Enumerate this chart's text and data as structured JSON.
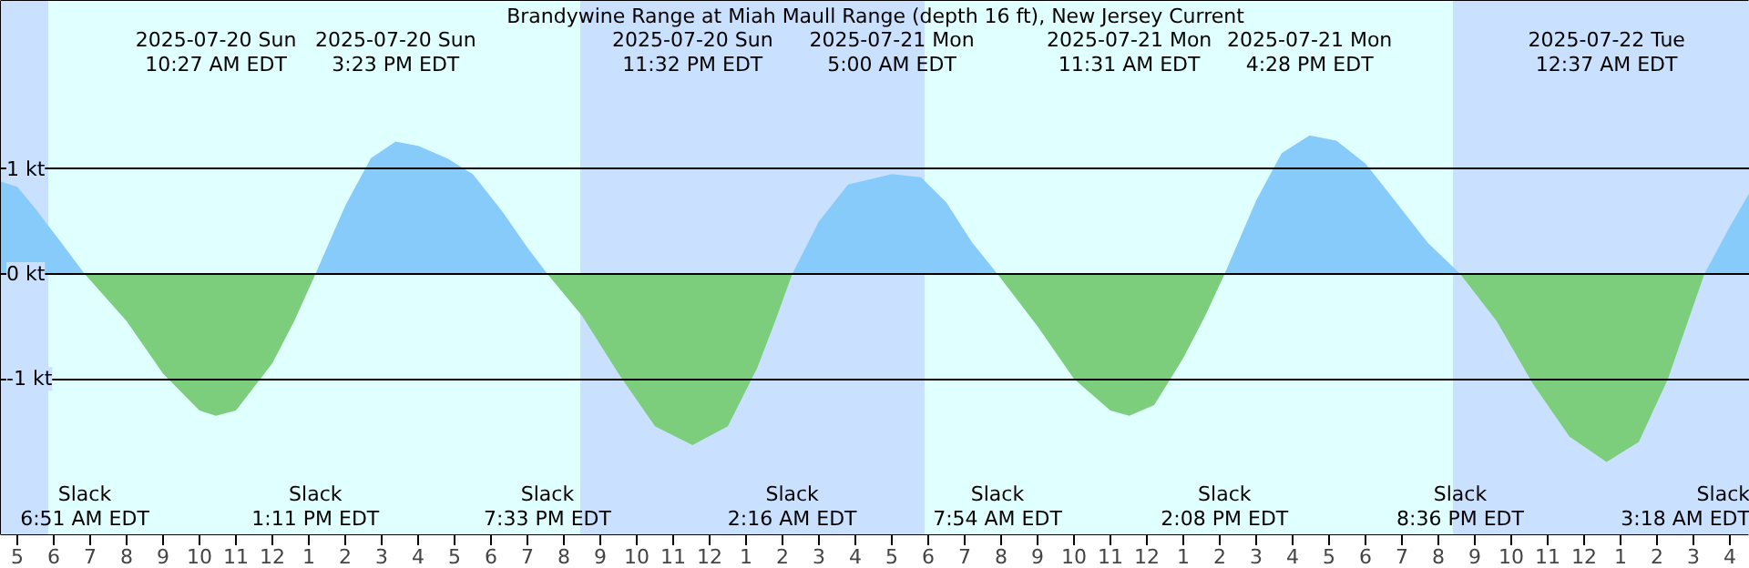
{
  "chart_data": {
    "type": "area",
    "title": "Brandywine Range at Miah Maull Range (depth 16 ft), New Jersey Current",
    "series": [
      {
        "color": "#87cbfa",
        "x": [
          "2025-07-20T04:33",
          "2025-07-20T05:00",
          "2025-07-20T05:30",
          "2025-07-20T06:12",
          "2025-07-20T06:51",
          null,
          "2025-07-20T13:11",
          "2025-07-20T14:00",
          "2025-07-20T14:42",
          "2025-07-20T15:23",
          "2025-07-20T16:00",
          "2025-07-20T16:48",
          "2025-07-20T17:30",
          "2025-07-20T18:18",
          "2025-07-20T19:00",
          "2025-07-20T19:33",
          null,
          "2025-07-21T02:16",
          "2025-07-21T03:00",
          "2025-07-21T03:48",
          "2025-07-21T05:00",
          "2025-07-21T05:48",
          "2025-07-21T06:30",
          "2025-07-21T07:12",
          "2025-07-21T07:54",
          null,
          "2025-07-21T14:08",
          "2025-07-21T15:00",
          "2025-07-21T15:42",
          "2025-07-21T16:28",
          "2025-07-21T17:12",
          "2025-07-21T18:00",
          "2025-07-21T18:48",
          "2025-07-21T19:42",
          "2025-07-21T20:36",
          null,
          "2025-07-22T03:18",
          "2025-07-22T04:00",
          "2025-07-22T04:33"
        ],
        "values": [
          0.88,
          0.83,
          0.62,
          0.3,
          0,
          null,
          0,
          0.65,
          1.1,
          1.26,
          1.22,
          1.1,
          0.95,
          0.6,
          0.25,
          0,
          null,
          0,
          0.5,
          0.85,
          0.95,
          0.92,
          0.68,
          0.3,
          0,
          null,
          0,
          0.7,
          1.15,
          1.32,
          1.27,
          1.05,
          0.7,
          0.3,
          0,
          null,
          0,
          0.45,
          0.78
        ]
      },
      {
        "color": "#7ccd7c",
        "x": [
          "2025-07-20T06:51",
          "2025-07-20T08:00",
          "2025-07-20T09:00",
          "2025-07-20T10:00",
          "2025-07-20T10:27",
          "2025-07-20T11:00",
          "2025-07-20T12:00",
          "2025-07-20T12:36",
          "2025-07-20T13:11",
          null,
          "2025-07-20T19:33",
          "2025-07-20T20:30",
          "2025-07-20T21:30",
          "2025-07-20T22:30",
          "2025-07-20T23:32",
          "2025-07-21T00:30",
          "2025-07-21T01:18",
          "2025-07-21T01:48",
          "2025-07-21T02:16",
          null,
          "2025-07-21T07:54",
          "2025-07-21T09:00",
          "2025-07-21T10:00",
          "2025-07-21T11:00",
          "2025-07-21T11:31",
          "2025-07-21T12:12",
          "2025-07-21T13:00",
          "2025-07-21T13:36",
          "2025-07-21T14:08",
          null,
          "2025-07-21T20:36",
          "2025-07-21T21:36",
          "2025-07-21T22:36",
          "2025-07-21T23:36",
          "2025-07-22T00:37",
          "2025-07-22T01:30",
          "2025-07-22T02:18",
          "2025-07-22T02:48",
          "2025-07-22T03:18"
        ],
        "values": [
          0,
          -0.45,
          -0.95,
          -1.3,
          -1.35,
          -1.3,
          -0.85,
          -0.45,
          0,
          null,
          0,
          -0.4,
          -0.95,
          -1.45,
          -1.63,
          -1.45,
          -0.9,
          -0.45,
          0,
          null,
          0,
          -0.5,
          -1.0,
          -1.3,
          -1.35,
          -1.25,
          -0.8,
          -0.4,
          0,
          null,
          0,
          -0.45,
          -1.05,
          -1.55,
          -1.79,
          -1.6,
          -1.0,
          -0.5,
          0
        ]
      }
    ],
    "xlim": [
      "2025-07-20T04:33",
      "2025-07-22T04:33"
    ],
    "ylim": [
      -2.48,
      2.6
    ],
    "yticks": [
      {
        "value": 1,
        "label": "1 kt"
      },
      {
        "value": 0,
        "label": "0 kt"
      },
      {
        "value": -1,
        "label": "-1 kt"
      }
    ],
    "xticks": [
      {
        "value": "2025-07-20T05:00",
        "label": "5"
      },
      {
        "value": "2025-07-20T06:00",
        "label": "6"
      },
      {
        "value": "2025-07-20T07:00",
        "label": "7"
      },
      {
        "value": "2025-07-20T08:00",
        "label": "8"
      },
      {
        "value": "2025-07-20T09:00",
        "label": "9"
      },
      {
        "value": "2025-07-20T10:00",
        "label": "10"
      },
      {
        "value": "2025-07-20T11:00",
        "label": "11"
      },
      {
        "value": "2025-07-20T12:00",
        "label": "12"
      },
      {
        "value": "2025-07-20T13:00",
        "label": "1"
      },
      {
        "value": "2025-07-20T14:00",
        "label": "2"
      },
      {
        "value": "2025-07-20T15:00",
        "label": "3"
      },
      {
        "value": "2025-07-20T16:00",
        "label": "4"
      },
      {
        "value": "2025-07-20T17:00",
        "label": "5"
      },
      {
        "value": "2025-07-20T18:00",
        "label": "6"
      },
      {
        "value": "2025-07-20T19:00",
        "label": "7"
      },
      {
        "value": "2025-07-20T20:00",
        "label": "8"
      },
      {
        "value": "2025-07-20T21:00",
        "label": "9"
      },
      {
        "value": "2025-07-20T22:00",
        "label": "10"
      },
      {
        "value": "2025-07-20T23:00",
        "label": "11"
      },
      {
        "value": "2025-07-21T00:00",
        "label": "12"
      },
      {
        "value": "2025-07-21T01:00",
        "label": "1"
      },
      {
        "value": "2025-07-21T02:00",
        "label": "2"
      },
      {
        "value": "2025-07-21T03:00",
        "label": "3"
      },
      {
        "value": "2025-07-21T04:00",
        "label": "4"
      },
      {
        "value": "2025-07-21T05:00",
        "label": "5"
      },
      {
        "value": "2025-07-21T06:00",
        "label": "6"
      },
      {
        "value": "2025-07-21T07:00",
        "label": "7"
      },
      {
        "value": "2025-07-21T08:00",
        "label": "8"
      },
      {
        "value": "2025-07-21T09:00",
        "label": "9"
      },
      {
        "value": "2025-07-21T10:00",
        "label": "10"
      },
      {
        "value": "2025-07-21T11:00",
        "label": "11"
      },
      {
        "value": "2025-07-21T12:00",
        "label": "12"
      },
      {
        "value": "2025-07-21T13:00",
        "label": "1"
      },
      {
        "value": "2025-07-21T14:00",
        "label": "2"
      },
      {
        "value": "2025-07-21T15:00",
        "label": "3"
      },
      {
        "value": "2025-07-21T16:00",
        "label": "4"
      },
      {
        "value": "2025-07-21T17:00",
        "label": "5"
      },
      {
        "value": "2025-07-21T18:00",
        "label": "6"
      },
      {
        "value": "2025-07-21T19:00",
        "label": "7"
      },
      {
        "value": "2025-07-21T20:00",
        "label": "8"
      },
      {
        "value": "2025-07-21T21:00",
        "label": "9"
      },
      {
        "value": "2025-07-21T22:00",
        "label": "10"
      },
      {
        "value": "2025-07-21T23:00",
        "label": "11"
      },
      {
        "value": "2025-07-22T00:00",
        "label": "12"
      },
      {
        "value": "2025-07-22T01:00",
        "label": "1"
      },
      {
        "value": "2025-07-22T02:00",
        "label": "2"
      },
      {
        "value": "2025-07-22T03:00",
        "label": "3"
      },
      {
        "value": "2025-07-22T04:00",
        "label": "4"
      }
    ],
    "grid": "y",
    "bands": [
      {
        "axis": "x",
        "from": "2025-07-20T04:33",
        "to": "2025-07-20T05:51",
        "color": "#c9e0ff"
      },
      {
        "axis": "x",
        "from": "2025-07-20T05:51",
        "to": "2025-07-20T20:27",
        "color": "#e0ffff"
      },
      {
        "axis": "x",
        "from": "2025-07-20T20:27",
        "to": "2025-07-21T05:54",
        "color": "#c9e0ff"
      },
      {
        "axis": "x",
        "from": "2025-07-21T05:54",
        "to": "2025-07-21T20:24",
        "color": "#e0ffff"
      },
      {
        "axis": "x",
        "from": "2025-07-21T20:24",
        "to": "2025-07-22T04:33",
        "color": "#c9e0ff"
      }
    ],
    "annotations": [
      "2025-07-20 Sun\n10:27 AM EDT",
      "2025-07-20 Sun\n3:23 PM EDT",
      "2025-07-20 Sun\n11:32 PM EDT",
      "2025-07-21 Mon\n5:00 AM EDT",
      "2025-07-21 Mon\n11:31 AM EDT",
      "2025-07-21 Mon\n4:28 PM EDT",
      "2025-07-22 Tue\n12:37 AM EDT",
      "Slack\n6:51 AM EDT",
      "Slack\n1:11 PM EDT",
      "Slack\n7:33 PM EDT",
      "Slack\n2:16 AM EDT",
      "Slack\n7:54 AM EDT",
      "Slack\n2:08 PM EDT",
      "Slack\n8:36 PM EDT",
      "Slack\n3:18 AM EDT"
    ]
  }
}
